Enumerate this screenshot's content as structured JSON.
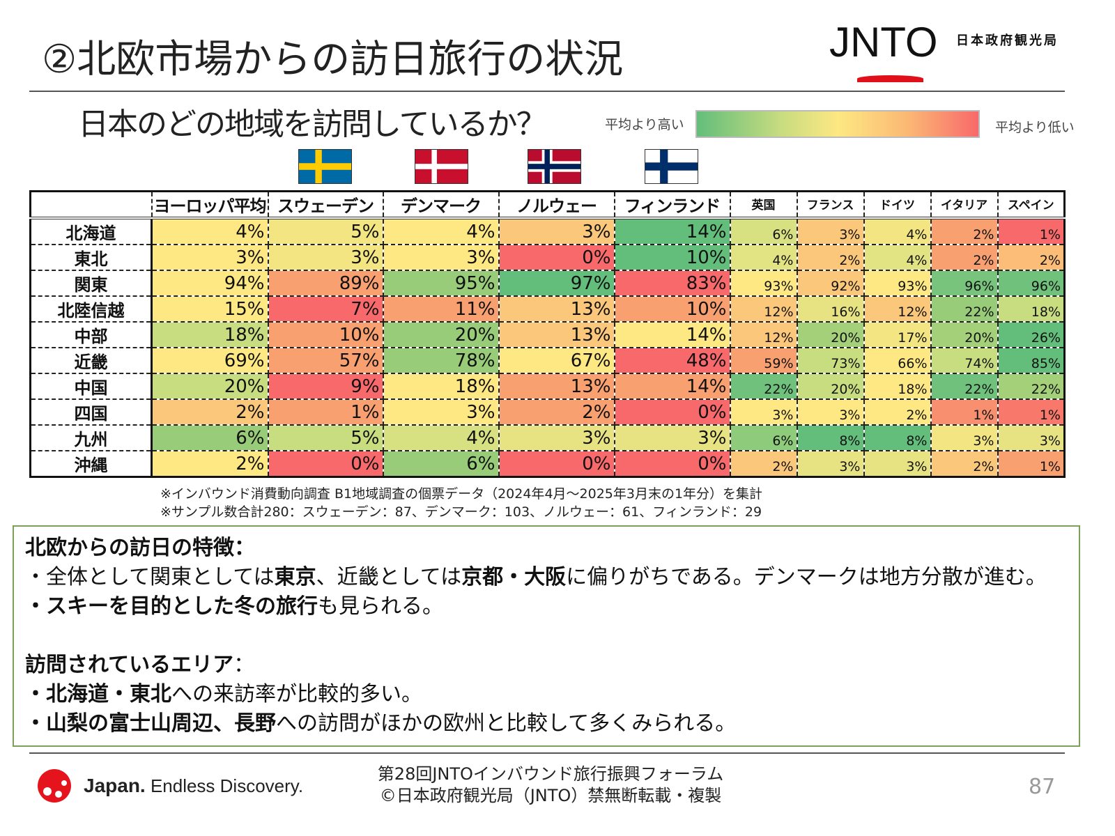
{
  "header": {
    "title": "②北欧市場からの訪日旅行の状況",
    "logo_text": "JNTO",
    "org_name": "日本政府観光局"
  },
  "subtitle": "日本のどの地域を訪問しているか？",
  "legend": {
    "high_label": "平均より高い",
    "low_label": "平均より低い",
    "high_color": "#63be7b",
    "low_color": "#f8696b"
  },
  "flags": [
    "sweden-flag",
    "denmark-flag",
    "norway-flag",
    "finland-flag"
  ],
  "chart_data": {
    "type": "heatmap",
    "columns": [
      "ヨーロッパ平均",
      "スウェーデン",
      "デンマーク",
      "ノルウェー",
      "フィンランド",
      "英国",
      "フランス",
      "ドイツ",
      "イタリア",
      "スペイン"
    ],
    "rows": [
      "北海道",
      "東北",
      "関東",
      "北陸信越",
      "中部",
      "近畿",
      "中国",
      "四国",
      "九州",
      "沖縄"
    ],
    "values": [
      [
        "4%",
        "5%",
        "4%",
        "3%",
        "14%",
        "6%",
        "3%",
        "4%",
        "2%",
        "1%"
      ],
      [
        "3%",
        "3%",
        "3%",
        "0%",
        "10%",
        "4%",
        "2%",
        "4%",
        "2%",
        "2%"
      ],
      [
        "94%",
        "89%",
        "95%",
        "97%",
        "83%",
        "93%",
        "92%",
        "93%",
        "96%",
        "96%"
      ],
      [
        "15%",
        "7%",
        "11%",
        "13%",
        "10%",
        "12%",
        "16%",
        "12%",
        "22%",
        "18%"
      ],
      [
        "18%",
        "10%",
        "20%",
        "13%",
        "14%",
        "12%",
        "20%",
        "17%",
        "20%",
        "26%"
      ],
      [
        "69%",
        "57%",
        "78%",
        "67%",
        "48%",
        "59%",
        "73%",
        "66%",
        "74%",
        "85%"
      ],
      [
        "20%",
        "9%",
        "18%",
        "13%",
        "14%",
        "22%",
        "20%",
        "18%",
        "22%",
        "22%"
      ],
      [
        "2%",
        "1%",
        "3%",
        "2%",
        "0%",
        "3%",
        "3%",
        "2%",
        "1%",
        "1%"
      ],
      [
        "6%",
        "5%",
        "4%",
        "3%",
        "3%",
        "6%",
        "8%",
        "8%",
        "3%",
        "3%"
      ],
      [
        "2%",
        "0%",
        "6%",
        "0%",
        "0%",
        "2%",
        "3%",
        "3%",
        "2%",
        "1%"
      ]
    ],
    "colors": [
      [
        "#fde883",
        "#f3e582",
        "#fde883",
        "#fbc77a",
        "#63be7b",
        "#d8e181",
        "#fbc77a",
        "#f3e582",
        "#f8a070",
        "#f8696b"
      ],
      [
        "#fde883",
        "#f3e582",
        "#fde883",
        "#f8696b",
        "#63be7b",
        "#e2e382",
        "#fbc77a",
        "#e2e382",
        "#f8a070",
        "#fbbd78"
      ],
      [
        "#fde883",
        "#f8a070",
        "#98cc78",
        "#63be7b",
        "#f8696b",
        "#fde883",
        "#fbc77a",
        "#fde883",
        "#78c47c",
        "#6fc17c"
      ],
      [
        "#fde883",
        "#f8696b",
        "#f8a070",
        "#fbc77a",
        "#f8a070",
        "#fbc77a",
        "#e8e382",
        "#fbc77a",
        "#98cc78",
        "#c8dc80"
      ],
      [
        "#c8dc80",
        "#f8a070",
        "#98cc78",
        "#fbc77a",
        "#fde883",
        "#fbc77a",
        "#a4d07a",
        "#f3e582",
        "#a4d07a",
        "#63be7b"
      ],
      [
        "#fde883",
        "#f8a070",
        "#98cc78",
        "#fde883",
        "#f8696b",
        "#f8a070",
        "#c8dc80",
        "#fde883",
        "#c8dc80",
        "#63be7b"
      ],
      [
        "#c8dc80",
        "#f8696b",
        "#fde883",
        "#f8a070",
        "#f8a070",
        "#6fc17c",
        "#c8dc80",
        "#fde883",
        "#6fc17c",
        "#a4d07a"
      ],
      [
        "#fbc77a",
        "#f8a070",
        "#fde883",
        "#f8a070",
        "#f8696b",
        "#fde883",
        "#fde883",
        "#fde883",
        "#f88f6f",
        "#f8796b"
      ],
      [
        "#98cc78",
        "#c8dc80",
        "#d8e181",
        "#e8e382",
        "#e8e382",
        "#8ecb7a",
        "#63be7b",
        "#63be7b",
        "#f3e582",
        "#e8e382"
      ],
      [
        "#fde883",
        "#f8696b",
        "#98cc78",
        "#f8696b",
        "#f8696b",
        "#fbc77a",
        "#e8e382",
        "#e8e382",
        "#fbc77a",
        "#f8a070"
      ]
    ]
  },
  "notes": [
    "※インバウンド消費動向調査 B1地域調査の個票データ（2024年4月～2025年3月末の1年分）を集計",
    "※サンプル数合計280：スウェーデン：87、デンマーク：103、ノルウェー：61、フィンランド：29"
  ],
  "summary": {
    "heading1": "北欧からの訪日の特徴：",
    "l1": [
      "・全体として関東としては",
      "東京",
      "、近畿としては",
      "京都・大阪",
      "に偏りがちである。デンマークは地方分散が進む。"
    ],
    "l2": [
      "・スキーを目的とした冬の旅行",
      "も見られる。"
    ],
    "heading2": "訪問されているエリア",
    "heading2_suffix": "：",
    "l3": [
      "・北海道・東北",
      "への来訪率が比較的多い。"
    ],
    "l4": [
      "・山梨の富士山周辺、長野",
      "への訪問がほかの欧州と比較して多くみられる。"
    ]
  },
  "footer": {
    "brand_bold": "Japan.",
    "brand_tag": "Endless Discovery.",
    "forum": "第28回JNTOインバウンド旅行振興フォーラム",
    "copyright": "©日本政府観光局（JNTO）禁無断転載・複製",
    "page": "87"
  }
}
